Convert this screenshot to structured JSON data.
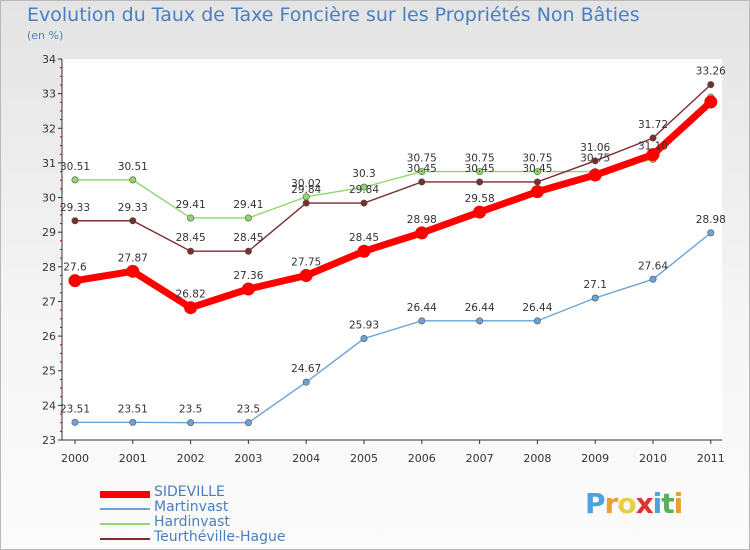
{
  "chart_data": {
    "type": "line",
    "title": "Evolution du Taux de Taxe Foncière sur les Propriétés Non Bâties",
    "subtitle": "(en %)",
    "categories": [
      "2000",
      "2001",
      "2002",
      "2003",
      "2004",
      "2005",
      "2006",
      "2007",
      "2008",
      "2009",
      "2010",
      "2011"
    ],
    "ylim": [
      23,
      34
    ],
    "yticks": [
      23,
      24,
      25,
      26,
      27,
      28,
      29,
      30,
      31,
      32,
      33,
      34
    ],
    "grid": false,
    "legend_position": "bottom-left",
    "series": [
      {
        "name": "SIDEVILLE",
        "color": "#ff0000",
        "values": [
          27.6,
          27.87,
          26.82,
          27.36,
          27.75,
          28.45,
          28.98,
          29.58,
          30.17,
          30.65,
          31.24,
          32.76
        ],
        "labels": [
          "27.6",
          "27.87",
          "26.82",
          "27.36",
          "27.75",
          "28.45",
          "28.98",
          "29.58",
          "",
          "",
          "",
          ""
        ]
      },
      {
        "name": "Martinvast",
        "color": "#6aa3d8",
        "values": [
          23.51,
          23.51,
          23.5,
          23.5,
          24.67,
          25.93,
          26.44,
          26.44,
          26.44,
          27.1,
          27.64,
          28.98
        ],
        "labels": [
          "23.51",
          "23.51",
          "23.5",
          "23.5",
          "24.67",
          "25.93",
          "26.44",
          "26.44",
          "26.44",
          "27.1",
          "27.64",
          "28.98"
        ]
      },
      {
        "name": "Hardinvast",
        "color": "#90d86a",
        "values": [
          30.51,
          30.51,
          29.41,
          29.41,
          30.02,
          30.3,
          30.75,
          30.75,
          30.75,
          30.75,
          31.1,
          32.9
        ],
        "labels": [
          "30.51",
          "30.51",
          "29.41",
          "29.41",
          "30.02",
          "30.3",
          "30.75",
          "30.75",
          "30.75",
          "30.75",
          "31.10",
          ""
        ]
      },
      {
        "name": "Teurthéville-Hague",
        "color": "#7a2e2e",
        "values": [
          29.33,
          29.33,
          28.45,
          28.45,
          29.84,
          29.84,
          30.45,
          30.45,
          30.45,
          31.06,
          31.72,
          33.26
        ],
        "labels": [
          "29.33",
          "29.33",
          "28.45",
          "28.45",
          "29.84",
          "29.84",
          "30.45",
          "30.45",
          "30.45",
          "31.06",
          "31.72",
          "33.26"
        ]
      }
    ]
  },
  "legend": [
    {
      "label": "SIDEVILLE",
      "color": "#ff0000",
      "weight": "thick"
    },
    {
      "label": "Martinvast",
      "color": "#6aa3d8",
      "weight": "thin"
    },
    {
      "label": "Hardinvast",
      "color": "#90d86a",
      "weight": "thin"
    },
    {
      "label": "Teurthéville-Hague",
      "color": "#7a2e2e",
      "weight": "thin"
    }
  ],
  "logo": {
    "letters": [
      "P",
      "r",
      "o",
      "x",
      "i",
      "t",
      "i"
    ],
    "colors": [
      "#4aa3df",
      "#e8a030",
      "#e8d040",
      "#e03030",
      "#4aa3df",
      "#58b058",
      "#e8a030"
    ]
  }
}
